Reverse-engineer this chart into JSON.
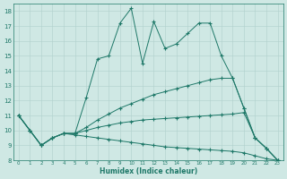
{
  "xlabel": "Humidex (Indice chaleur)",
  "background_color": "#cfe8e4",
  "line_color": "#1e7868",
  "grid_color": "#b0d0cc",
  "xlim": [
    -0.5,
    23.5
  ],
  "ylim": [
    8,
    18.5
  ],
  "xticks": [
    0,
    1,
    2,
    3,
    4,
    5,
    6,
    7,
    8,
    9,
    10,
    11,
    12,
    13,
    14,
    15,
    16,
    17,
    18,
    19,
    20,
    21,
    22,
    23
  ],
  "yticks": [
    8,
    9,
    10,
    11,
    12,
    13,
    14,
    15,
    16,
    17,
    18
  ],
  "series": [
    {
      "x": [
        0,
        1,
        2,
        3,
        4,
        5,
        6,
        7,
        8,
        9,
        10,
        11,
        12,
        13,
        14,
        15,
        16,
        17,
        18,
        19,
        20,
        21,
        22,
        23
      ],
      "y": [
        11,
        10,
        9,
        9.5,
        9.8,
        9.8,
        12.2,
        14.8,
        15,
        17.2,
        18.2,
        14.5,
        17.3,
        15.5,
        15.8,
        16.5,
        17.2,
        17.2,
        15,
        13.5,
        11.5,
        9.5,
        8.8,
        8
      ],
      "linestyle": "-"
    },
    {
      "x": [
        0,
        1,
        2,
        3,
        4,
        5,
        6,
        7,
        8,
        9,
        10,
        11,
        12,
        13,
        14,
        15,
        16,
        17,
        18,
        19,
        20,
        21,
        22,
        23
      ],
      "y": [
        11,
        10,
        9,
        9.5,
        9.8,
        9.8,
        10.2,
        10.7,
        11.1,
        11.5,
        11.8,
        12.1,
        12.4,
        12.6,
        12.8,
        13.0,
        13.2,
        13.4,
        13.5,
        13.5,
        11.5,
        9.5,
        8.8,
        8
      ],
      "linestyle": "-"
    },
    {
      "x": [
        0,
        1,
        2,
        3,
        4,
        5,
        6,
        7,
        8,
        9,
        10,
        11,
        12,
        13,
        14,
        15,
        16,
        17,
        18,
        19,
        20,
        21,
        22,
        23
      ],
      "y": [
        11,
        10,
        9,
        9.5,
        9.8,
        9.8,
        10.0,
        10.2,
        10.35,
        10.5,
        10.6,
        10.7,
        10.75,
        10.8,
        10.85,
        10.9,
        10.95,
        11.0,
        11.05,
        11.1,
        11.2,
        9.5,
        8.8,
        8
      ],
      "linestyle": "-"
    },
    {
      "x": [
        0,
        1,
        2,
        3,
        4,
        5,
        6,
        7,
        8,
        9,
        10,
        11,
        12,
        13,
        14,
        15,
        16,
        17,
        18,
        19,
        20,
        21,
        22,
        23
      ],
      "y": [
        11,
        10,
        9,
        9.5,
        9.8,
        9.7,
        9.6,
        9.5,
        9.4,
        9.3,
        9.2,
        9.1,
        9.0,
        8.9,
        8.85,
        8.8,
        8.75,
        8.7,
        8.65,
        8.6,
        8.5,
        8.3,
        8.1,
        8.0
      ],
      "linestyle": "-"
    }
  ]
}
